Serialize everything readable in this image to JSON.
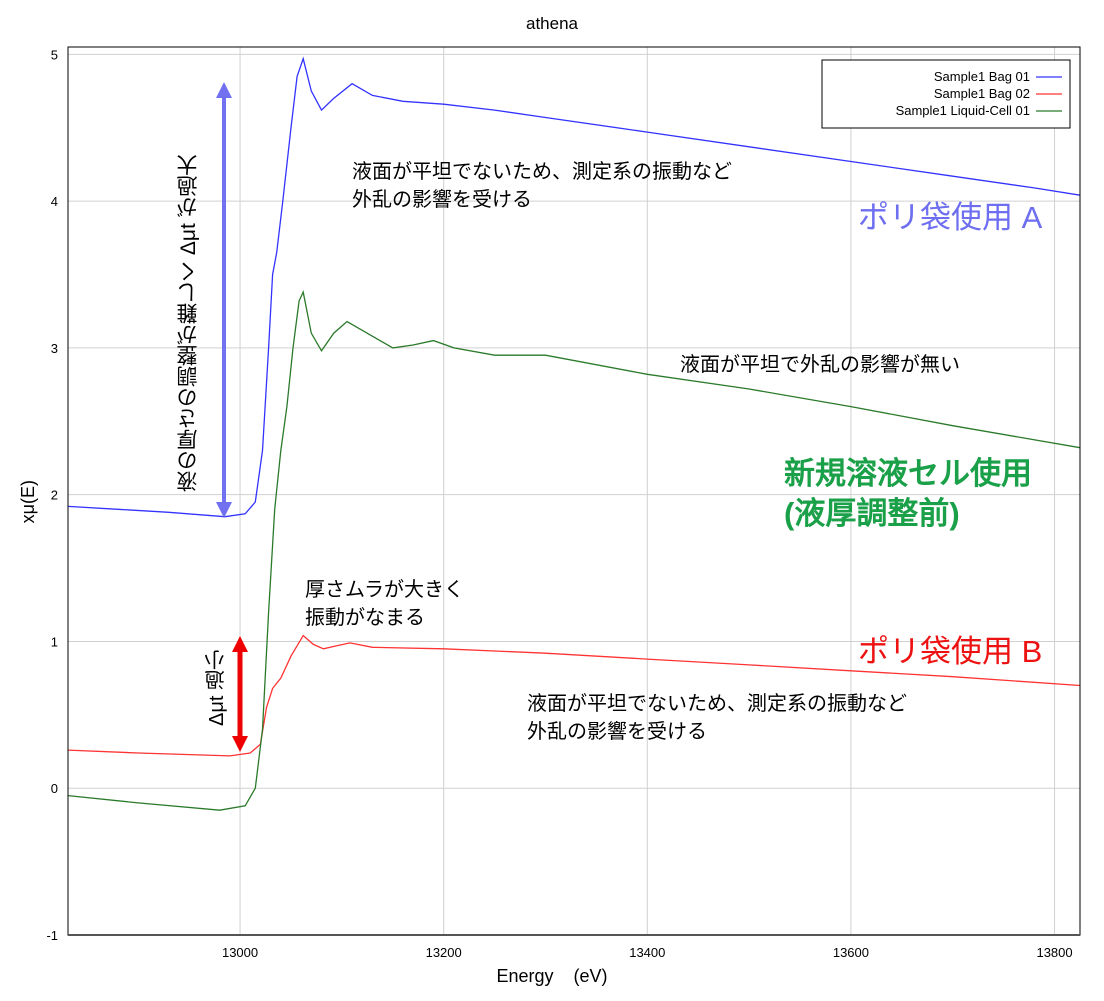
{
  "chart_data": {
    "type": "line",
    "title": "athena",
    "xlabel": "Energy    (eV)",
    "ylabel": "xμ(E)",
    "xlim": [
      12831,
      13825
    ],
    "ylim": [
      -1,
      5.05
    ],
    "xticks": [
      13000,
      13200,
      13400,
      13600,
      13800
    ],
    "yticks": [
      -1,
      0,
      1,
      2,
      3,
      4,
      5
    ],
    "grid": true,
    "legend_position": "top-right",
    "series": [
      {
        "name": "Sample1 Bag 01",
        "color": "#3333ff",
        "x": [
          12831,
          12880,
          12930,
          12985,
          13005,
          13015,
          13022,
          13028,
          13032,
          13036,
          13042,
          13050,
          13056,
          13062,
          13070,
          13080,
          13092,
          13110,
          13130,
          13160,
          13200,
          13250,
          13300,
          13400,
          13500,
          13600,
          13700,
          13780,
          13825
        ],
        "y": [
          1.92,
          1.9,
          1.88,
          1.85,
          1.87,
          1.95,
          2.3,
          3.0,
          3.5,
          3.65,
          4.0,
          4.5,
          4.85,
          4.97,
          4.75,
          4.62,
          4.7,
          4.8,
          4.72,
          4.68,
          4.66,
          4.62,
          4.57,
          4.47,
          4.37,
          4.27,
          4.17,
          4.09,
          4.04
        ]
      },
      {
        "name": "Sample1 Bag 02",
        "color": "#ff3333",
        "x": [
          12831,
          12900,
          12990,
          13010,
          13020,
          13026,
          13032,
          13040,
          13050,
          13062,
          13072,
          13082,
          13095,
          13108,
          13130,
          13200,
          13300,
          13400,
          13500,
          13600,
          13700,
          13825
        ],
        "y": [
          0.26,
          0.24,
          0.22,
          0.24,
          0.3,
          0.55,
          0.68,
          0.75,
          0.9,
          1.04,
          0.98,
          0.95,
          0.97,
          0.99,
          0.96,
          0.95,
          0.92,
          0.88,
          0.84,
          0.8,
          0.76,
          0.7
        ]
      },
      {
        "name": "Sample1 Liquid-Cell 01",
        "color": "#2a7a2a",
        "x": [
          12831,
          12900,
          12980,
          13005,
          13015,
          13022,
          13028,
          13034,
          13040,
          13046,
          13052,
          13058,
          13062,
          13070,
          13080,
          13092,
          13105,
          13120,
          13150,
          13170,
          13190,
          13210,
          13250,
          13300,
          13400,
          13500,
          13600,
          13700,
          13825
        ],
        "y": [
          -0.05,
          -0.1,
          -0.15,
          -0.12,
          0.0,
          0.4,
          1.2,
          1.9,
          2.3,
          2.6,
          3.0,
          3.32,
          3.38,
          3.1,
          2.98,
          3.1,
          3.18,
          3.12,
          3.0,
          3.02,
          3.05,
          3.0,
          2.95,
          2.95,
          2.82,
          2.72,
          2.6,
          2.47,
          2.32
        ]
      }
    ]
  },
  "annotations": {
    "blue_note": [
      "液面が平坦でないため、測定系の振動など",
      "外乱の影響を受ける"
    ],
    "blue_label": "ポリ袋使用 A",
    "green_note": "液面が平坦で外乱の影響が無い",
    "green_label": [
      "新規溶液セル使用",
      "(液厚調整前)"
    ],
    "red_note_top": [
      "厚さムラが大きく",
      "振動がなまる"
    ],
    "red_label": "ポリ袋使用 B",
    "red_note": [
      "液面が平坦でないため、測定系の振動など",
      "外乱の影響を受ける"
    ],
    "vertical_blue": "液の厚さの調整が難しく Δμt が過大",
    "vertical_red": "Δμt 過小",
    "colors": {
      "blue_label": "#6e6ef0",
      "green_label": "#1aa048",
      "red_label": "#ee1111",
      "blue_arrow": "#7070f0",
      "red_arrow": "#ee0000"
    }
  }
}
